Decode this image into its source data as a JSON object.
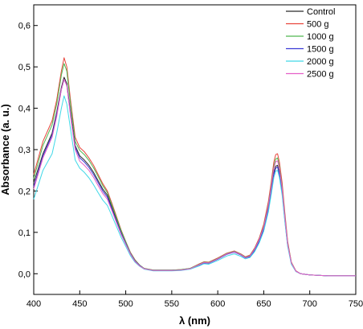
{
  "chart_data": {
    "type": "line",
    "xlabel": "λ (nm)",
    "ylabel": "Absorbance (a. u.)",
    "xlim": [
      400,
      750
    ],
    "ylim": [
      -0.05,
      0.65
    ],
    "xticks": [
      400,
      450,
      500,
      550,
      600,
      650,
      700,
      750
    ],
    "yticks": [
      0.0,
      0.1,
      0.2,
      0.3,
      0.4,
      0.5,
      0.6
    ],
    "ytick_labels": [
      "0,0",
      "0,1",
      "0,2",
      "0,3",
      "0,4",
      "0,5",
      "0,6"
    ],
    "legend_position": "top-right",
    "grid": false,
    "x": [
      400,
      410,
      420,
      425,
      430,
      433,
      436,
      440,
      445,
      450,
      455,
      460,
      465,
      470,
      475,
      480,
      485,
      490,
      495,
      500,
      505,
      510,
      515,
      520,
      530,
      540,
      550,
      560,
      570,
      580,
      585,
      590,
      600,
      610,
      618,
      625,
      630,
      635,
      640,
      645,
      650,
      655,
      658,
      661,
      663,
      665,
      667,
      670,
      673,
      676,
      680,
      685,
      690,
      700,
      720,
      750
    ],
    "series": [
      {
        "name": "Control",
        "color": "#2b2b2b",
        "values": [
          0.22,
          0.29,
          0.34,
          0.39,
          0.45,
          0.475,
          0.46,
          0.39,
          0.31,
          0.285,
          0.275,
          0.262,
          0.245,
          0.225,
          0.205,
          0.19,
          0.16,
          0.13,
          0.1,
          0.075,
          0.05,
          0.032,
          0.02,
          0.012,
          0.008,
          0.008,
          0.008,
          0.009,
          0.012,
          0.022,
          0.027,
          0.026,
          0.036,
          0.048,
          0.053,
          0.046,
          0.039,
          0.042,
          0.058,
          0.08,
          0.11,
          0.16,
          0.2,
          0.245,
          0.26,
          0.262,
          0.245,
          0.2,
          0.13,
          0.07,
          0.025,
          0.006,
          0.0,
          -0.003,
          -0.005,
          -0.005
        ]
      },
      {
        "name": "500 g",
        "color": "#e8453c",
        "values": [
          0.24,
          0.32,
          0.37,
          0.42,
          0.49,
          0.522,
          0.5,
          0.42,
          0.33,
          0.305,
          0.295,
          0.28,
          0.262,
          0.24,
          0.218,
          0.2,
          0.17,
          0.138,
          0.106,
          0.078,
          0.052,
          0.034,
          0.021,
          0.013,
          0.009,
          0.009,
          0.009,
          0.01,
          0.013,
          0.024,
          0.029,
          0.028,
          0.038,
          0.05,
          0.055,
          0.048,
          0.041,
          0.045,
          0.062,
          0.086,
          0.12,
          0.175,
          0.22,
          0.27,
          0.288,
          0.29,
          0.27,
          0.22,
          0.145,
          0.078,
          0.028,
          0.007,
          0.0,
          -0.003,
          -0.005,
          -0.005
        ]
      },
      {
        "name": "1000 g",
        "color": "#4fb84f",
        "values": [
          0.23,
          0.31,
          0.36,
          0.41,
          0.48,
          0.508,
          0.49,
          0.41,
          0.32,
          0.298,
          0.288,
          0.274,
          0.256,
          0.235,
          0.213,
          0.196,
          0.166,
          0.135,
          0.104,
          0.077,
          0.051,
          0.033,
          0.021,
          0.013,
          0.009,
          0.009,
          0.009,
          0.01,
          0.013,
          0.023,
          0.028,
          0.027,
          0.037,
          0.049,
          0.054,
          0.047,
          0.04,
          0.044,
          0.06,
          0.083,
          0.115,
          0.168,
          0.212,
          0.26,
          0.277,
          0.28,
          0.26,
          0.21,
          0.138,
          0.074,
          0.027,
          0.006,
          0.0,
          -0.003,
          -0.005,
          -0.005
        ]
      },
      {
        "name": "1500 g",
        "color": "#3a3ad6",
        "values": [
          0.21,
          0.285,
          0.335,
          0.385,
          0.445,
          0.47,
          0.455,
          0.385,
          0.305,
          0.28,
          0.27,
          0.257,
          0.24,
          0.22,
          0.2,
          0.185,
          0.156,
          0.127,
          0.098,
          0.073,
          0.049,
          0.031,
          0.02,
          0.012,
          0.008,
          0.008,
          0.008,
          0.009,
          0.012,
          0.021,
          0.026,
          0.025,
          0.035,
          0.047,
          0.052,
          0.045,
          0.038,
          0.041,
          0.056,
          0.078,
          0.107,
          0.156,
          0.196,
          0.24,
          0.255,
          0.258,
          0.24,
          0.195,
          0.127,
          0.068,
          0.024,
          0.006,
          0.0,
          -0.003,
          -0.005,
          -0.005
        ]
      },
      {
        "name": "2000 g",
        "color": "#40d8e8",
        "values": [
          0.18,
          0.25,
          0.29,
          0.34,
          0.4,
          0.43,
          0.41,
          0.35,
          0.275,
          0.255,
          0.245,
          0.232,
          0.215,
          0.196,
          0.178,
          0.165,
          0.14,
          0.114,
          0.088,
          0.066,
          0.044,
          0.028,
          0.018,
          0.011,
          0.007,
          0.007,
          0.007,
          0.008,
          0.011,
          0.019,
          0.024,
          0.023,
          0.032,
          0.043,
          0.048,
          0.042,
          0.036,
          0.039,
          0.053,
          0.074,
          0.103,
          0.15,
          0.19,
          0.233,
          0.248,
          0.25,
          0.233,
          0.19,
          0.124,
          0.066,
          0.023,
          0.005,
          0.0,
          -0.003,
          -0.005,
          -0.005
        ]
      },
      {
        "name": "2500 g",
        "color": "#e65fc8",
        "values": [
          0.205,
          0.28,
          0.33,
          0.38,
          0.445,
          0.47,
          0.455,
          0.382,
          0.3,
          0.272,
          0.262,
          0.25,
          0.233,
          0.213,
          0.194,
          0.18,
          0.152,
          0.123,
          0.095,
          0.071,
          0.048,
          0.03,
          0.019,
          0.012,
          0.008,
          0.008,
          0.008,
          0.009,
          0.012,
          0.022,
          0.027,
          0.026,
          0.036,
          0.048,
          0.053,
          0.046,
          0.039,
          0.043,
          0.059,
          0.082,
          0.113,
          0.165,
          0.208,
          0.255,
          0.271,
          0.273,
          0.254,
          0.206,
          0.135,
          0.072,
          0.026,
          0.006,
          0.0,
          -0.003,
          -0.005,
          -0.005
        ]
      }
    ]
  }
}
